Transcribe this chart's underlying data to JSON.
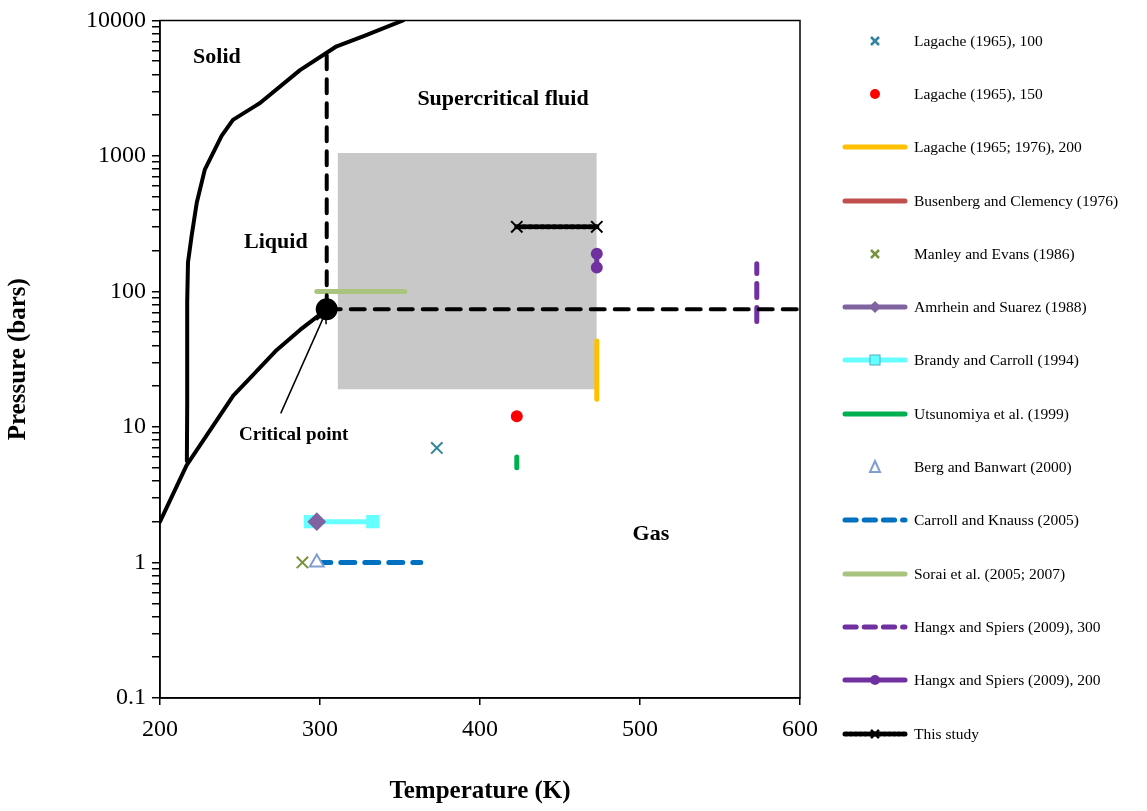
{
  "chart_data": {
    "type": "line",
    "xlabel": "Temperature (K)",
    "ylabel": "Pressure (bars)",
    "xlim": [
      200,
      600
    ],
    "xticks": [
      200,
      300,
      400,
      500,
      600
    ],
    "ylim": [
      0.1,
      10000
    ],
    "log": "y",
    "yticks": [
      0.1,
      {
        "value": 0.2,
        "label": null
      },
      {
        "value": 0.3,
        "label": null
      },
      {
        "value": 0.4,
        "label": null
      },
      {
        "value": 0.5,
        "label": null
      },
      {
        "value": 0.6,
        "label": null
      },
      {
        "value": 0.7,
        "label": null
      },
      {
        "value": 0.8,
        "label": null
      },
      {
        "value": 0.9,
        "label": null
      },
      1,
      {
        "value": 2,
        "label": null
      },
      {
        "value": 3,
        "label": null
      },
      {
        "value": 4,
        "label": null
      },
      {
        "value": 5,
        "label": null
      },
      {
        "value": 6,
        "label": null
      },
      {
        "value": 7,
        "label": null
      },
      {
        "value": 8,
        "label": null
      },
      {
        "value": 9,
        "label": null
      },
      10,
      {
        "value": 20,
        "label": null
      },
      {
        "value": 30,
        "label": null
      },
      {
        "value": 40,
        "label": null
      },
      {
        "value": 50,
        "label": null
      },
      {
        "value": 60,
        "label": null
      },
      {
        "value": 70,
        "label": null
      },
      {
        "value": 80,
        "label": null
      },
      {
        "value": 90,
        "label": null
      },
      100,
      {
        "value": 200,
        "label": null
      },
      {
        "value": 300,
        "label": null
      },
      {
        "value": 400,
        "label": null
      },
      {
        "value": 500,
        "label": null
      },
      {
        "value": 600,
        "label": null
      },
      {
        "value": 700,
        "label": null
      },
      {
        "value": 800,
        "label": null
      },
      {
        "value": 900,
        "label": null
      },
      1000,
      {
        "value": 2000,
        "label": null
      },
      {
        "value": 3000,
        "label": null
      },
      {
        "value": 4000,
        "label": null
      },
      {
        "value": 5000,
        "label": null
      },
      {
        "value": 6000,
        "label": null
      },
      {
        "value": 7000,
        "label": null
      },
      {
        "value": 8000,
        "label": null
      },
      {
        "value": 9000,
        "label": null
      },
      10000
    ],
    "grid": false,
    "legend": "right",
    "series": [
      {
        "type": "line",
        "color": "#c8c8c8",
        "marker": "none",
        "x": [
          311,
          473
        ],
        "values": [
          null,
          null
        ],
        "lower": [
          19,
          19
        ],
        "upper": [
          1050,
          1050
        ]
      },
      {
        "type": "line",
        "color": "#000000",
        "marker": "none",
        "x": [
          200,
          216.6,
          245.8,
          273,
          287.5,
          304.2
        ],
        "values": [
          2,
          5.2,
          17,
          37,
          52,
          73.8
        ]
      },
      {
        "type": "line",
        "color": "#000000",
        "marker": "none",
        "x": [
          216.8,
          217,
          217,
          217.5,
          219.8,
          223,
          228,
          238.5,
          245.6,
          262.5,
          287.5,
          310.4,
          326.9,
          351.9
        ],
        "values": [
          5.6,
          15,
          84,
          164,
          259,
          453,
          792,
          1407,
          1844,
          2458,
          4295,
          6443,
          7630,
          10000
        ]
      },
      {
        "type": "line",
        "color": "#000000",
        "marker": "none",
        "line_style": "dashed",
        "x": [
          304.2,
          304.2
        ],
        "values": [
          73.8,
          5720
        ]
      },
      {
        "type": "line",
        "color": "#000000",
        "marker": "none",
        "line_style": "dashed",
        "x": [
          304.2,
          600
        ],
        "values": [
          73.8,
          73.8
        ]
      },
      {
        "type": "scatter",
        "color": "#000000",
        "marker": "circle",
        "x": [
          304.2
        ],
        "values": [
          73.8
        ]
      },
      {
        "name": "Lagache (1965), 100",
        "type": "scatter",
        "color": "#31859c",
        "marker": "cross",
        "x": [
          373
        ],
        "values": [
          7
        ]
      },
      {
        "name": "Lagache (1965), 150",
        "type": "scatter",
        "color": "#ff0000",
        "marker": "circle",
        "x": [
          423
        ],
        "values": [
          12
        ]
      },
      {
        "name": "Lagache (1965; 1976), 200",
        "type": "line",
        "color": "#ffc000",
        "marker": "none",
        "x": [
          473,
          473
        ],
        "values": [
          16,
          43
        ]
      },
      {
        "name": "Busenberg and Clemency (1976)",
        "type": "line",
        "color": "#c0504d",
        "marker": "none",
        "x": [
          null
        ],
        "values": [
          null
        ]
      },
      {
        "name": "Manley and Evans (1986)",
        "type": "scatter",
        "color": "#77933c",
        "marker": "cross",
        "x": [
          289
        ],
        "values": [
          1
        ]
      },
      {
        "name": "Amrhein and Suarez (1988)",
        "type": "line",
        "color": "#8064a2",
        "marker": "diamond",
        "x": [
          298
        ],
        "values": [
          2
        ]
      },
      {
        "name": "Brandy and Carroll (1994)",
        "type": "line",
        "color": "#66ffff",
        "marker": "square",
        "x": [
          294,
          333
        ],
        "values": [
          2,
          2
        ]
      },
      {
        "name": "Utsunomiya et al. (1999)",
        "type": "line",
        "color": "#00b050",
        "marker": "none",
        "x": [
          423,
          423
        ],
        "values": [
          5,
          6
        ]
      },
      {
        "name": "Berg and Banwart (2000)",
        "type": "scatter",
        "color": "#7f9fd4",
        "marker": "triangle",
        "x": [
          298
        ],
        "values": [
          1
        ]
      },
      {
        "name": "Carroll and Knauss (2005)",
        "type": "line",
        "color": "#0070c0",
        "marker": "none",
        "line_style": "dashed",
        "x": [
          298,
          363
        ],
        "values": [
          1,
          1
        ]
      },
      {
        "name": "Sorai et al. (2005; 2007)",
        "type": "line",
        "color": "#a9c47f",
        "marker": "none",
        "x": [
          298,
          353
        ],
        "values": [
          100,
          100
        ]
      },
      {
        "name": "Hangx and Spiers (2009), 300",
        "type": "line",
        "color": "#7030a0",
        "marker": "none",
        "line_style": "dashed",
        "x": [
          573,
          573
        ],
        "values": [
          60,
          160
        ]
      },
      {
        "name": "Hangx and Spiers (2009), 200",
        "type": "line",
        "color": "#7030a0",
        "marker": "circle",
        "x": [
          473,
          473
        ],
        "values": [
          150,
          190
        ]
      },
      {
        "name": "This study",
        "type": "line",
        "color": "#000000",
        "marker": "cross",
        "line_style": "dotted",
        "x": [
          423,
          473
        ],
        "values": [
          300,
          300
        ]
      }
    ],
    "annotations": [
      "Solid",
      "Supercritical fluid",
      "Liquid",
      "Gas",
      {
        "text": "Critical point",
        "x": 304.2,
        "y": 73.8
      }
    ]
  }
}
